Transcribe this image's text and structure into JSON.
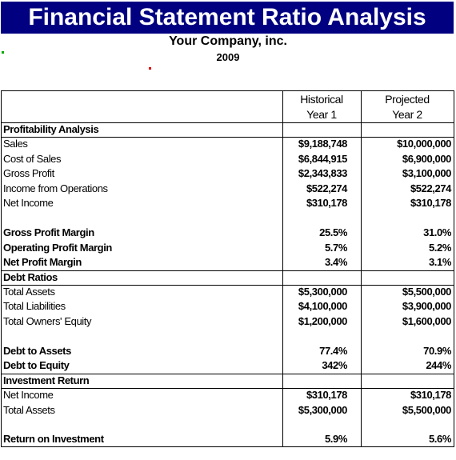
{
  "header": {
    "title": "Financial Statement Ratio Analysis",
    "company": "Your Company, inc.",
    "year": "2009"
  },
  "table": {
    "columns": [
      {
        "line1": "Historical",
        "line2": "Year 1"
      },
      {
        "line1": "Projected",
        "line2": "Year 2"
      }
    ],
    "sections": [
      {
        "title": "Profitability Analysis",
        "groups": [
          [
            [
              "Sales",
              "$9,188,748",
              "$10,000,000"
            ],
            [
              "Cost of Sales",
              "$6,844,915",
              "$6,900,000"
            ],
            [
              "Gross Profit",
              "$2,343,833",
              "$3,100,000"
            ],
            [
              "Income from Operations",
              "$522,274",
              "$522,274"
            ],
            [
              "Net Income",
              "$310,178",
              "$310,178"
            ]
          ],
          [
            [
              "Gross Profit Margin",
              "25.5%",
              "31.0%"
            ],
            [
              "Operating Profit Margin",
              "5.7%",
              "5.2%"
            ],
            [
              "Net Profit Margin",
              "3.4%",
              "3.1%"
            ]
          ]
        ]
      },
      {
        "title": "Debt Ratios",
        "groups": [
          [
            [
              "Total Assets",
              "$5,300,000",
              "$5,500,000"
            ],
            [
              "Total Liabilities",
              "$4,100,000",
              "$3,900,000"
            ],
            [
              "Total Owners' Equity",
              "$1,200,000",
              "$1,600,000"
            ]
          ],
          [
            [
              "Debt to Assets",
              "77.4%",
              "70.9%"
            ],
            [
              "Debt to Equity",
              "342%",
              "244%"
            ]
          ]
        ]
      },
      {
        "title": "Investment Return",
        "groups": [
          [
            [
              "Net Income",
              "$310,178",
              "$310,178"
            ],
            [
              "Total Assets",
              "$5,300,000",
              "$5,500,000"
            ]
          ],
          [
            [
              "Return on Investment",
              "5.9%",
              "5.6%"
            ]
          ]
        ]
      }
    ]
  }
}
